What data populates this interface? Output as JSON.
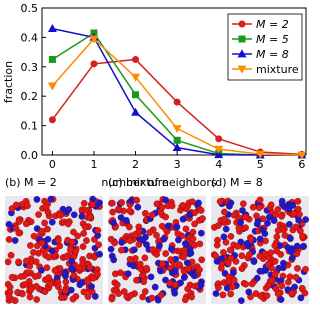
{
  "chart_data": {
    "type": "line",
    "xlabel": "number of neighbors",
    "ylabel": "fraction",
    "x": [
      0,
      1,
      2,
      3,
      4,
      5,
      6
    ],
    "xlim": [
      -0.25,
      6.1
    ],
    "xticks": [
      0,
      1,
      2,
      3,
      4,
      5,
      6
    ],
    "ylim": [
      0,
      0.5
    ],
    "yticks": [
      {
        "value": 0,
        "label": "0.0"
      },
      0.1,
      0.2,
      0.3,
      0.4,
      0.5
    ],
    "legend": "upper right",
    "series": [
      {
        "name": "M = 2",
        "color": "#d62020",
        "marker": "circle",
        "values": [
          0.12,
          0.31,
          0.325,
          0.18,
          0.055,
          0.01,
          0.002
        ]
      },
      {
        "name": "M = 5",
        "color": "#1a9a1a",
        "marker": "square",
        "values": [
          0.325,
          0.415,
          0.205,
          0.05,
          0.005,
          0,
          0
        ]
      },
      {
        "name": "M = 8",
        "color": "#1010c8",
        "marker": "triangle-up",
        "values": [
          0.43,
          0.4,
          0.145,
          0.025,
          0.001,
          0,
          0
        ]
      },
      {
        "name": "mixture",
        "color": "#ff8c00",
        "marker": "triangle-down",
        "values": [
          0.235,
          0.395,
          0.265,
          0.09,
          0.02,
          0.003,
          0
        ]
      }
    ]
  },
  "panels": [
    {
      "label": "(b) M = 2"
    },
    {
      "label": "(c) mixture"
    },
    {
      "label": "(d) M = 8"
    }
  ]
}
